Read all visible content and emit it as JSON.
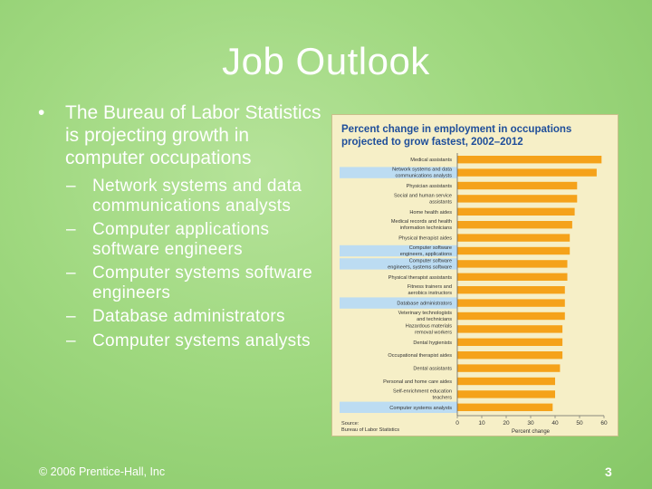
{
  "slide": {
    "title": "Job Outlook",
    "bullet": "The Bureau of Labor Statistics is projecting growth in computer occupations",
    "subbullets": [
      "Network systems and data communications analysts",
      "Computer applications software engineers",
      "Computer systems software engineers",
      "Database administrators",
      "Computer systems analysts"
    ],
    "footer": "© 2006 Prentice-Hall, Inc",
    "page_number": "3"
  },
  "colors": {
    "bar": "#f5a21a",
    "highlight": "#bcdcf2",
    "chart_bg": "#f6efc7",
    "title_text": "#1f4e9a"
  },
  "chart_data": {
    "type": "bar",
    "orientation": "horizontal",
    "title": "Percent change in employment in occupations projected to grow fastest, 2002–2012",
    "xlabel": "Percent change",
    "source": "Source: Bureau of Labor Statistics",
    "xlim": [
      0,
      60
    ],
    "xticks": [
      "0",
      "10",
      "20",
      "30",
      "40",
      "50",
      "60"
    ],
    "categories": [
      [
        "Medical assistants"
      ],
      [
        "Network systems and data",
        "communications analysts"
      ],
      [
        "Physician assistants"
      ],
      [
        "Social and human service",
        "assistants"
      ],
      [
        "Home health aides"
      ],
      [
        "Medical records and health",
        "information technicians"
      ],
      [
        "Physical therapist aides"
      ],
      [
        "Computer software",
        "engineers, applications"
      ],
      [
        "Computer software",
        "engineers, systems software"
      ],
      [
        "Physical therapist assistants"
      ],
      [
        "Fitness trainers and",
        "aerobics instructors"
      ],
      [
        "Database administrators"
      ],
      [
        "Veterinary technologists",
        "and technicians"
      ],
      [
        "Hazardous materials",
        "removal workers"
      ],
      [
        "Dental hygienists"
      ],
      [
        "Occupational therapist aides"
      ],
      [
        "Dental assistants"
      ],
      [
        "Personal and home care aides"
      ],
      [
        "Self-enrichment education",
        "teachers"
      ],
      [
        "Computer systems analysts"
      ]
    ],
    "values": [
      59,
      57,
      49,
      49,
      48,
      47,
      46,
      46,
      45,
      45,
      44,
      44,
      44,
      43,
      43,
      43,
      42,
      40,
      40,
      39
    ],
    "highlighted": [
      1,
      7,
      8,
      11,
      19
    ]
  }
}
